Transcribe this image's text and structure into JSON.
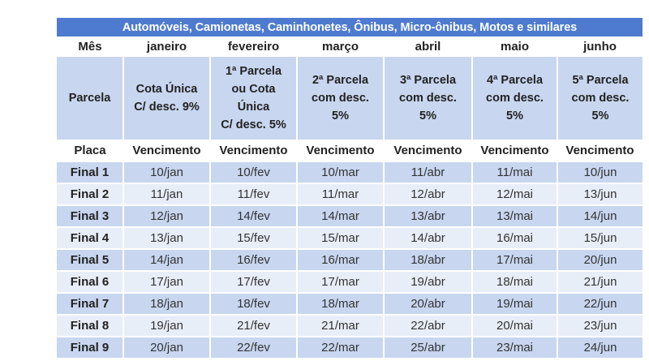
{
  "title": "Automóveis, Camionetas, Caminhonetes, Ônibus, Micro-ônibus, Motos e similares",
  "month_label": "Mês",
  "months": [
    "janeiro",
    "fevereiro",
    "março",
    "abril",
    "maio",
    "junho"
  ],
  "parcel_label": "Parcela",
  "parcels": [
    [
      "Cota Única",
      "C/ desc. 9%"
    ],
    [
      "1ª Parcela",
      "ou Cota",
      "Única",
      "C/ desc. 5%"
    ],
    [
      "2ª Parcela",
      "com desc.",
      "5%"
    ],
    [
      "3ª Parcela",
      "com desc.",
      "5%"
    ],
    [
      "4ª Parcela",
      "com desc.",
      "5%"
    ],
    [
      "5ª Parcela",
      "com desc.",
      "5%"
    ]
  ],
  "plate_label": "Placa",
  "due_label": "Vencimento",
  "rows": [
    {
      "plate": "Final 1",
      "dates": [
        "10/jan",
        "10/fev",
        "10/mar",
        "11/abr",
        "11/mai",
        "10/jun"
      ]
    },
    {
      "plate": "Final 2",
      "dates": [
        "11/jan",
        "11/fev",
        "11/mar",
        "12/abr",
        "12/mai",
        "13/jun"
      ]
    },
    {
      "plate": "Final 3",
      "dates": [
        "12/jan",
        "14/fev",
        "14/mar",
        "13/abr",
        "13/mai",
        "14/jun"
      ]
    },
    {
      "plate": "Final 4",
      "dates": [
        "13/jan",
        "15/fev",
        "15/mar",
        "14/abr",
        "16/mai",
        "15/jun"
      ]
    },
    {
      "plate": "Final 5",
      "dates": [
        "14/jan",
        "16/fev",
        "16/mar",
        "18/abr",
        "17/mai",
        "20/jun"
      ]
    },
    {
      "plate": "Final 6",
      "dates": [
        "17/jan",
        "17/fev",
        "17/mar",
        "19/abr",
        "18/mai",
        "21/jun"
      ]
    },
    {
      "plate": "Final 7",
      "dates": [
        "18/jan",
        "18/fev",
        "18/mar",
        "20/abr",
        "19/mai",
        "22/jun"
      ]
    },
    {
      "plate": "Final 8",
      "dates": [
        "19/jan",
        "21/fev",
        "21/mar",
        "22/abr",
        "20/mai",
        "23/jun"
      ]
    },
    {
      "plate": "Final 9",
      "dates": [
        "20/jan",
        "22/fev",
        "22/mar",
        "25/abr",
        "23/mai",
        "24/jun"
      ]
    }
  ],
  "colors": {
    "title_bg": "#4e7bd0",
    "header_bg": "#c8d6ef",
    "row_shade": "#c8d6ef",
    "row_plain": "#e8eef8"
  }
}
